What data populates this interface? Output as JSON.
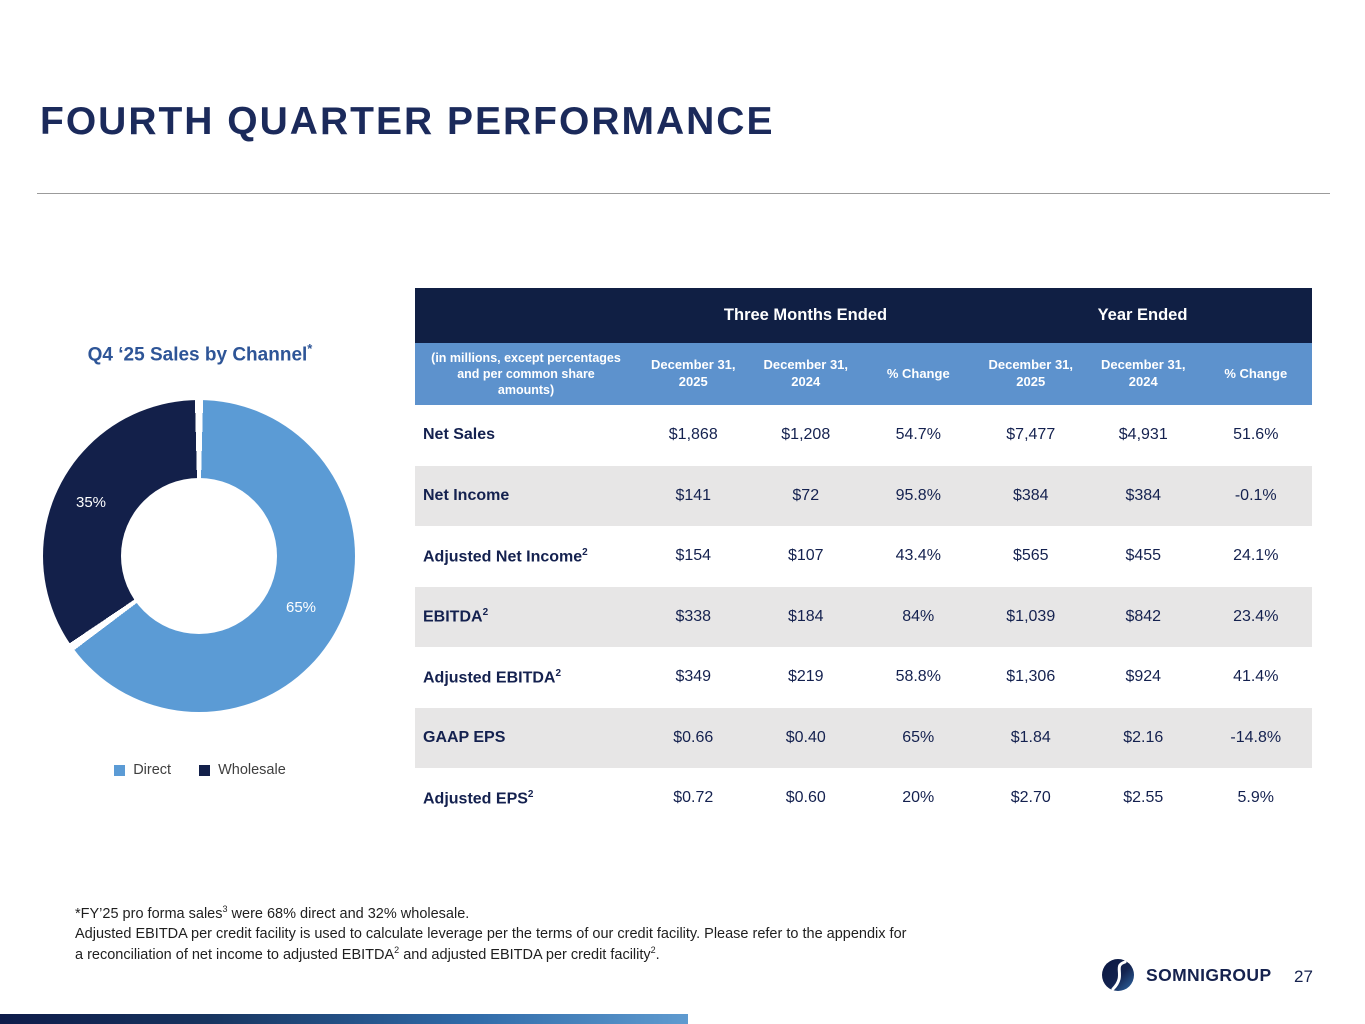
{
  "slide": {
    "title": "FOURTH QUARTER PERFORMANCE",
    "brand": "SOMNIGROUP",
    "page_number": "27"
  },
  "chart": {
    "title": "Q4 ‘25 Sales by Channel",
    "title_note": "*",
    "slice_labels": {
      "wholesale": "35%",
      "direct": "65%"
    },
    "legend": [
      {
        "label": "Direct",
        "color": "#5B9BD5"
      },
      {
        "label": "Wholesale",
        "color": "#13204A"
      }
    ]
  },
  "chart_data": {
    "type": "pie",
    "subtype": "donut",
    "title": "Q4 ‘25 Sales by Channel*",
    "categories": [
      "Direct",
      "Wholesale"
    ],
    "values": [
      65,
      35
    ],
    "unit": "%",
    "colors": [
      "#5B9BD5",
      "#13204A"
    ],
    "legend_position": "bottom",
    "start_angle_deg": 0,
    "direction": "clockwise"
  },
  "table": {
    "corner_note": "(in millions, except percentages and per common share amounts)",
    "group_headers": [
      "Three Months Ended",
      "Year Ended"
    ],
    "columns": [
      "December 31, 2025",
      "December 31, 2024",
      "% Change",
      "December 31, 2025",
      "December 31, 2024",
      "% Change"
    ],
    "rows": [
      {
        "label": "Net Sales",
        "sup": "",
        "values": [
          "$1,868",
          "$1,208",
          "54.7%",
          "$7,477",
          "$4,931",
          "51.6%"
        ]
      },
      {
        "label": "Net Income",
        "sup": "",
        "values": [
          "$141",
          "$72",
          "95.8%",
          "$384",
          "$384",
          "-0.1%"
        ]
      },
      {
        "label": "Adjusted Net Income",
        "sup": "2",
        "values": [
          "$154",
          "$107",
          "43.4%",
          "$565",
          "$455",
          "24.1%"
        ]
      },
      {
        "label": "EBITDA",
        "sup": "2",
        "values": [
          "$338",
          "$184",
          "84%",
          "$1,039",
          "$842",
          "23.4%"
        ]
      },
      {
        "label": "Adjusted EBITDA",
        "sup": "2",
        "values": [
          "$349",
          "$219",
          "58.8%",
          "$1,306",
          "$924",
          "41.4%"
        ]
      },
      {
        "label": "GAAP EPS",
        "sup": "",
        "values": [
          "$0.66",
          "$0.40",
          "65%",
          "$1.84",
          "$2.16",
          "-14.8%"
        ]
      },
      {
        "label": "Adjusted EPS",
        "sup": "2",
        "values": [
          "$0.72",
          "$0.60",
          "20%",
          "$2.70",
          "$2.55",
          "5.9%"
        ]
      }
    ]
  },
  "footnotes": {
    "line1_pre": "*FY’25 pro forma sales",
    "line1_sup": "3",
    "line1_post": " were 68% direct and 32% wholesale.",
    "line2": "Adjusted EBITDA per credit facility is used to calculate leverage per the terms of our credit facility. Please refer to the appendix for",
    "line3_pre": "a reconciliation of net income to adjusted EBITDA",
    "line3_sup1": "2",
    "line3_mid": " and adjusted EBITDA per credit facility",
    "line3_sup2": "2",
    "line3_post": "."
  },
  "colors": {
    "title_navy": "#1B2A5B",
    "header_navy": "#101F44",
    "header_blue": "#5D92CD",
    "row_alt_gray": "#E7E6E6",
    "chart_title_blue": "#2E5597"
  }
}
